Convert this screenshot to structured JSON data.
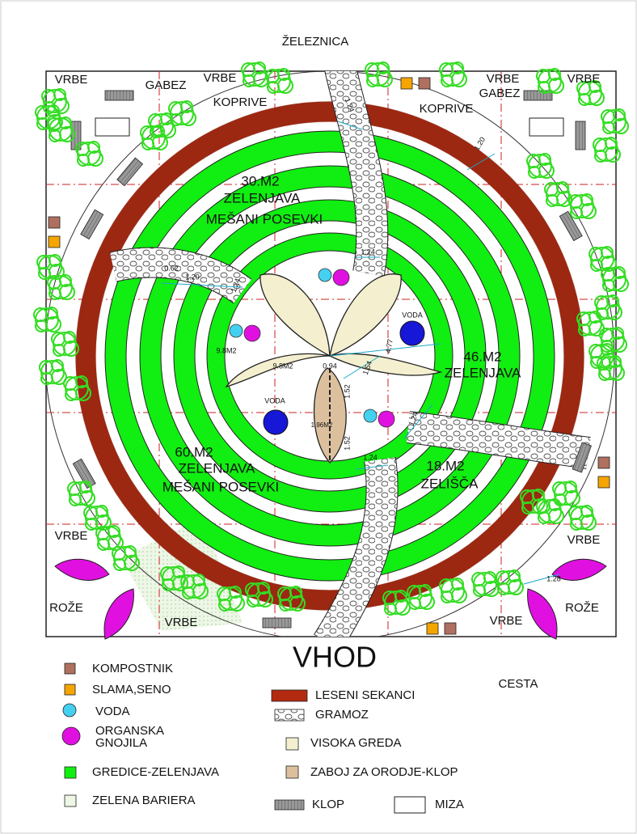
{
  "plan": {
    "north": "ŽELEZNICA",
    "entrance": "VHOD",
    "road": "CESTA",
    "labels": [
      "VRBE",
      "GABEZ",
      "VRBE",
      "KOPRIVE",
      "VRBE",
      "GABEZ",
      "VRBE",
      "KOPRIVE",
      "VRBE",
      "VRBE",
      "ROŽE",
      "VRBE",
      "VRBE",
      "ROŽE"
    ],
    "zones": [
      "30.M2",
      "ZELENJAVA",
      "MEŠANI POSEVKI",
      "46.M2",
      "ZELENJAVA",
      "60.M2",
      "ZELENJAVA",
      "MEŠANI POSEVKI",
      "18.M2",
      "ZELIŠČA"
    ],
    "small_labels": [
      "VODA",
      "VODA",
      "9.8M2",
      "9.8M2",
      "1.96M2"
    ],
    "dimensions": [
      "1.20",
      "1.24",
      "1.24",
      "0.62",
      "1.20",
      "1.24",
      "4.77",
      "1.54",
      "0.94",
      "1.52",
      "1.52",
      "1.24",
      "1.24",
      "1.28"
    ]
  },
  "legend": {
    "items": [
      "KOMPOSTNIK",
      "SLAMA,SENO",
      "VODA",
      "ORGANSKA",
      "GNOJILA",
      "GREDICE-ZELENJAVA",
      "ZELENA BARIERA",
      "LESENI SEKANCI",
      "GRAMOZ",
      "VISOKA GREDA",
      "ZABOJ ZA ORODJE-KLOP",
      "KLOP",
      "MIZA"
    ]
  }
}
